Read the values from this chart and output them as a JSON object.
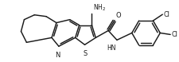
{
  "bg_color": "#ffffff",
  "line_color": "#1a1a1a",
  "line_width": 1.05,
  "figsize": [
    2.25,
    0.78
  ],
  "dpi": 100,
  "xlim": [
    0,
    225
  ],
  "ylim": [
    0,
    78
  ]
}
